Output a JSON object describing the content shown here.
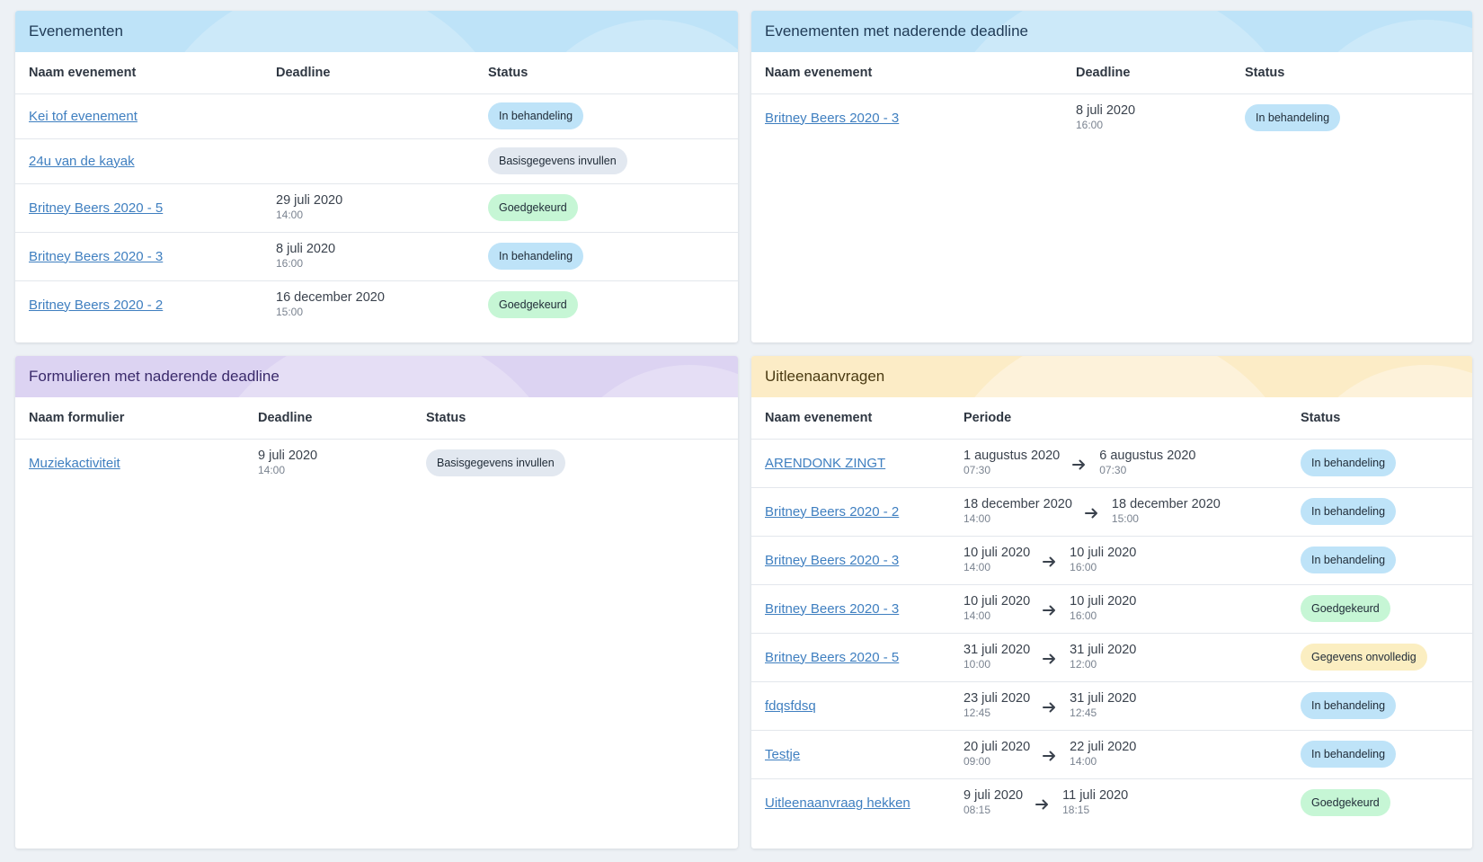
{
  "colors": {
    "badge_blue": "#bee3f8",
    "badge_gray": "#e2e8f0",
    "badge_green": "#c6f6d5",
    "badge_yellow": "#fbeec1",
    "link": "#3f7fc0"
  },
  "events": {
    "title": "Evenementen",
    "headers": {
      "name": "Naam evenement",
      "deadline": "Deadline",
      "status": "Status"
    },
    "rows": [
      {
        "name": "Kei tof evenement",
        "date": "",
        "time": "",
        "status": "In behandeling",
        "status_color": "blue"
      },
      {
        "name": "24u van de kayak",
        "date": "",
        "time": "",
        "status": "Basisgegevens invullen",
        "status_color": "gray"
      },
      {
        "name": "Britney Beers 2020 - 5",
        "date": "29 juli 2020",
        "time": "14:00",
        "status": "Goedgekeurd",
        "status_color": "green"
      },
      {
        "name": "Britney Beers 2020 - 3",
        "date": "8 juli 2020",
        "time": "16:00",
        "status": "In behandeling",
        "status_color": "blue"
      },
      {
        "name": "Britney Beers 2020 - 2",
        "date": "16 december 2020",
        "time": "15:00",
        "status": "Goedgekeurd",
        "status_color": "green"
      }
    ]
  },
  "events_deadline": {
    "title": "Evenementen met naderende deadline",
    "headers": {
      "name": "Naam evenement",
      "deadline": "Deadline",
      "status": "Status"
    },
    "rows": [
      {
        "name": "Britney Beers 2020 - 3",
        "date": "8 juli 2020",
        "time": "16:00",
        "status": "In behandeling",
        "status_color": "blue"
      }
    ]
  },
  "forms": {
    "title": "Formulieren met naderende deadline",
    "headers": {
      "name": "Naam formulier",
      "deadline": "Deadline",
      "status": "Status"
    },
    "rows": [
      {
        "name": "Muziekactiviteit",
        "date": "9 juli 2020",
        "time": "14:00",
        "status": "Basisgegevens invullen",
        "status_color": "gray"
      }
    ]
  },
  "loans": {
    "title": "Uitleenaanvragen",
    "headers": {
      "name": "Naam evenement",
      "period": "Periode",
      "status": "Status"
    },
    "rows": [
      {
        "name": "ARENDONK ZINGT",
        "from_date": "1 augustus 2020",
        "from_time": "07:30",
        "to_date": "6 augustus 2020",
        "to_time": "07:30",
        "status": "In behandeling",
        "status_color": "blue"
      },
      {
        "name": "Britney Beers 2020 - 2",
        "from_date": "18 december 2020",
        "from_time": "14:00",
        "to_date": "18 december 2020",
        "to_time": "15:00",
        "status": "In behandeling",
        "status_color": "blue"
      },
      {
        "name": "Britney Beers 2020 - 3",
        "from_date": "10 juli 2020",
        "from_time": "14:00",
        "to_date": "10 juli 2020",
        "to_time": "16:00",
        "status": "In behandeling",
        "status_color": "blue"
      },
      {
        "name": "Britney Beers 2020 - 3",
        "from_date": "10 juli 2020",
        "from_time": "14:00",
        "to_date": "10 juli 2020",
        "to_time": "16:00",
        "status": "Goedgekeurd",
        "status_color": "green"
      },
      {
        "name": "Britney Beers 2020 - 5",
        "from_date": "31 juli 2020",
        "from_time": "10:00",
        "to_date": "31 juli 2020",
        "to_time": "12:00",
        "status": "Gegevens onvolledig",
        "status_color": "yellow"
      },
      {
        "name": "fdqsfdsq",
        "from_date": "23 juli 2020",
        "from_time": "12:45",
        "to_date": "31 juli 2020",
        "to_time": "12:45",
        "status": "In behandeling",
        "status_color": "blue"
      },
      {
        "name": "Testje",
        "from_date": "20 juli 2020",
        "from_time": "09:00",
        "to_date": "22 juli 2020",
        "to_time": "14:00",
        "status": "In behandeling",
        "status_color": "blue"
      },
      {
        "name": "Uitleenaanvraag hekken",
        "from_date": "9 juli 2020",
        "from_time": "08:15",
        "to_date": "11 juli 2020",
        "to_time": "18:15",
        "status": "Goedgekeurd",
        "status_color": "green"
      }
    ]
  }
}
